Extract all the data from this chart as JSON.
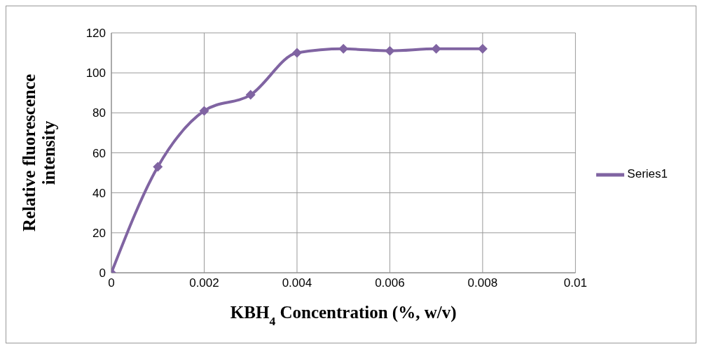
{
  "chart_data": {
    "type": "line",
    "xlabel": "KBH$_{4}$ Concentration (%, w/v)",
    "ylabel": "Relative fluorescence intensity",
    "x": [
      0,
      0.001,
      0.002,
      0.003,
      0.004,
      0.005,
      0.006,
      0.007,
      0.008
    ],
    "series": [
      {
        "name": "Series1",
        "color": "#8064a2",
        "values": [
          0,
          53,
          81,
          89,
          110,
          112,
          111,
          112,
          112
        ]
      }
    ],
    "xlim": [
      0,
      0.01
    ],
    "xticks": [
      0,
      0.002,
      0.004,
      0.006,
      0.008,
      0.01
    ],
    "ylim": [
      0,
      120
    ],
    "yticks": [
      0,
      20,
      40,
      60,
      80,
      100,
      120
    ],
    "grid": true,
    "legend": "right",
    "marker": "diamond",
    "line_style": "solid"
  }
}
